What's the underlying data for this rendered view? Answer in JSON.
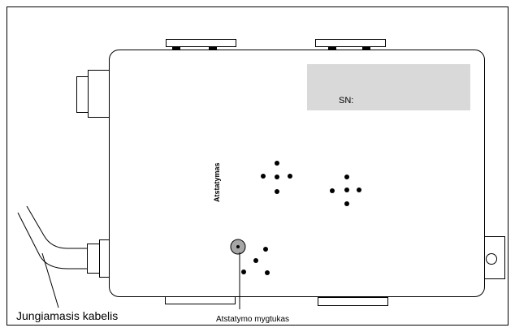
{
  "labels": {
    "sn": "SN:",
    "reset": "Atstatymas",
    "reset_button": "Atstatymo mygtukas",
    "cable": "Jungiamasis kabelis"
  },
  "colors": {
    "line": "#000000",
    "sn_panel": "#d9d9d9",
    "button_fill": "#a6a6a6",
    "background": "#ffffff"
  }
}
